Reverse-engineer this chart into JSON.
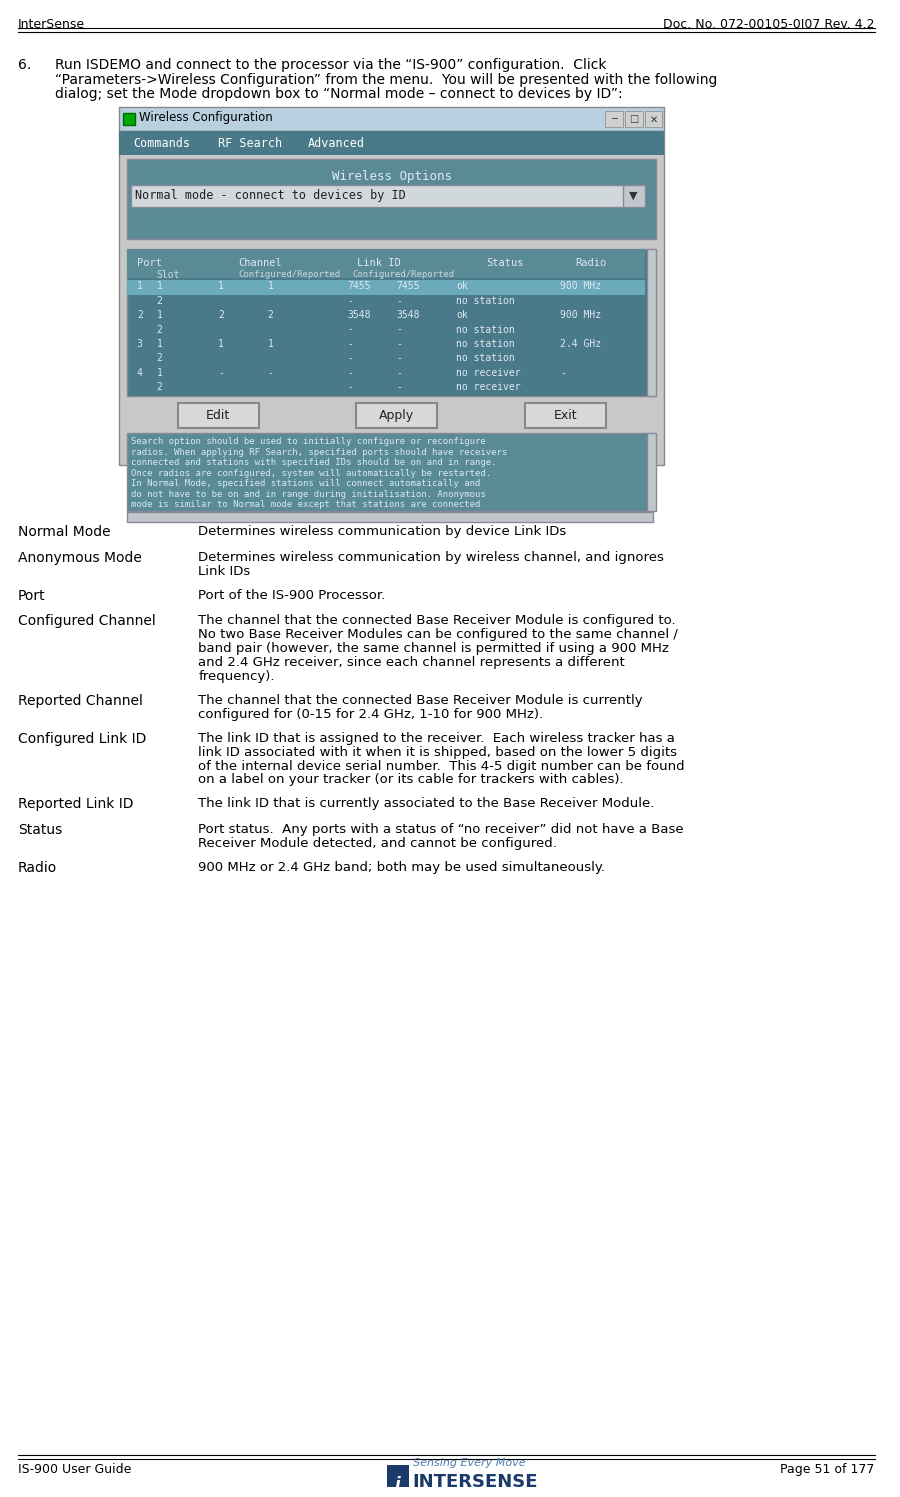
{
  "header_left": "InterSense",
  "header_right": "Doc. No. 072-00105-0I07 Rev. 4.2",
  "footer_left": "IS-900 User Guide",
  "footer_right": "Page 51 of 177",
  "section_number": "6.",
  "section_text": "Run ISDEMO and connect to the processor via the “IS-900” configuration.  Click\n“Parameters->Wireless Configuration” from the menu.  You will be presented with the following\ndialog; set the Mode dropdown box to “Normal mode – connect to devices by ID”:",
  "table_entries": [
    [
      "Normal Mode",
      "Determines wireless communication by device Link IDs"
    ],
    [
      "Anonymous Mode",
      "Determines wireless communication by wireless channel, and ignores\nLink IDs"
    ],
    [
      "Port",
      "Port of the IS-900 Processor."
    ],
    [
      "Configured Channel",
      "The channel that the connected Base Receiver Module is configured to.\nNo two Base Receiver Modules can be configured to the same channel /\nband pair (however, the same channel is permitted if using a 900 MHz\nand 2.4 GHz receiver, since each channel represents a different\nfrequency)."
    ],
    [
      "Reported Channel",
      "The channel that the connected Base Receiver Module is currently\nconfigured for (0-15 for 2.4 GHz, 1-10 for 900 MHz)."
    ],
    [
      "Configured Link ID",
      "The link ID that is assigned to the receiver.  Each wireless tracker has a\nlink ID associated with it when it is shipped, based on the lower 5 digits\nof the internal device serial number.  This 4-5 digit number can be found\non a label on your tracker (or its cable for trackers with cables)."
    ],
    [
      "Reported Link ID",
      "The link ID that is currently associated to the Base Receiver Module."
    ],
    [
      "Status",
      "Port status.  Any ports with a status of “no receiver” did not have a Base\nReceiver Module detected, and cannot be configured."
    ],
    [
      "Radio",
      "900 MHz or 2.4 GHz band; both may be used simultaneously."
    ]
  ],
  "dialog_title": "Wireless Configuration",
  "dialog_menu": [
    "Commands",
    "RF Search",
    "Advanced"
  ],
  "dialog_options_label": "Wireless Options",
  "dialog_dropdown": "Normal mode - connect to devices by ID",
  "dialog_col_headers": [
    "Port",
    "Channel",
    "Link ID",
    "Status",
    "Radio"
  ],
  "dialog_col_sub": [
    "Slot",
    "Configured/Reported",
    "Configured/Reported"
  ],
  "dialog_rows": [
    [
      "1",
      "1",
      "1",
      "1",
      "7455",
      "7455",
      "ok",
      "",
      "900 MHz"
    ],
    [
      "",
      "2",
      "",
      "",
      "-",
      "-",
      "no station",
      "",
      ""
    ],
    [
      "2",
      "1",
      "2",
      "2",
      "3548",
      "3548",
      "ok",
      "",
      "900 MHz"
    ],
    [
      "",
      "2",
      "",
      "",
      "-",
      "-",
      "no station",
      "",
      ""
    ],
    [
      "3",
      "1",
      "1",
      "1",
      "-",
      "-",
      "no station",
      "",
      "2.4 GHz"
    ],
    [
      "",
      "2",
      "",
      "",
      "-",
      "-",
      "no station",
      "",
      ""
    ],
    [
      "4",
      "1",
      "-",
      "-",
      "-",
      "-",
      "no receiver",
      "",
      "-"
    ],
    [
      "",
      "2",
      "",
      "",
      "-",
      "-",
      "no receiver",
      "",
      ""
    ]
  ],
  "dialog_buttons": [
    "Edit",
    "Apply",
    "Exit"
  ],
  "dialog_info_text": "Search option should be used to initially configure or reconfigure\nradios. When applying RF Search, specified ports should have receivers\nconnected and stations with specified IDs should be on and in range.\nOnce radios are configured, system will automatically be restarted.\nIn Normal Mode, specified stations will connect automatically and\ndo not have to be on and in range during initialisation. Anonymous\nmode is similar to Normal mode except that stations are connected",
  "bg_color": "#ffffff",
  "header_line_color": "#000000",
  "text_color": "#000000",
  "dialog_bg": "#c0c0c0",
  "dialog_titlebar_bg": "#a8c4d8",
  "dialog_menu_bg": "#4a7a8a",
  "dialog_inner_bg": "#5a8a96",
  "dialog_table_bg": "#5a8a9a",
  "dialog_row_alt": "#4a7a86",
  "dialog_info_bg": "#5a8a96",
  "intersense_blue": "#1a3a6a",
  "font_size_header": 9,
  "font_size_body": 9.5,
  "font_size_section": 10,
  "font_size_table_label": 10,
  "font_size_table_desc": 9.5
}
